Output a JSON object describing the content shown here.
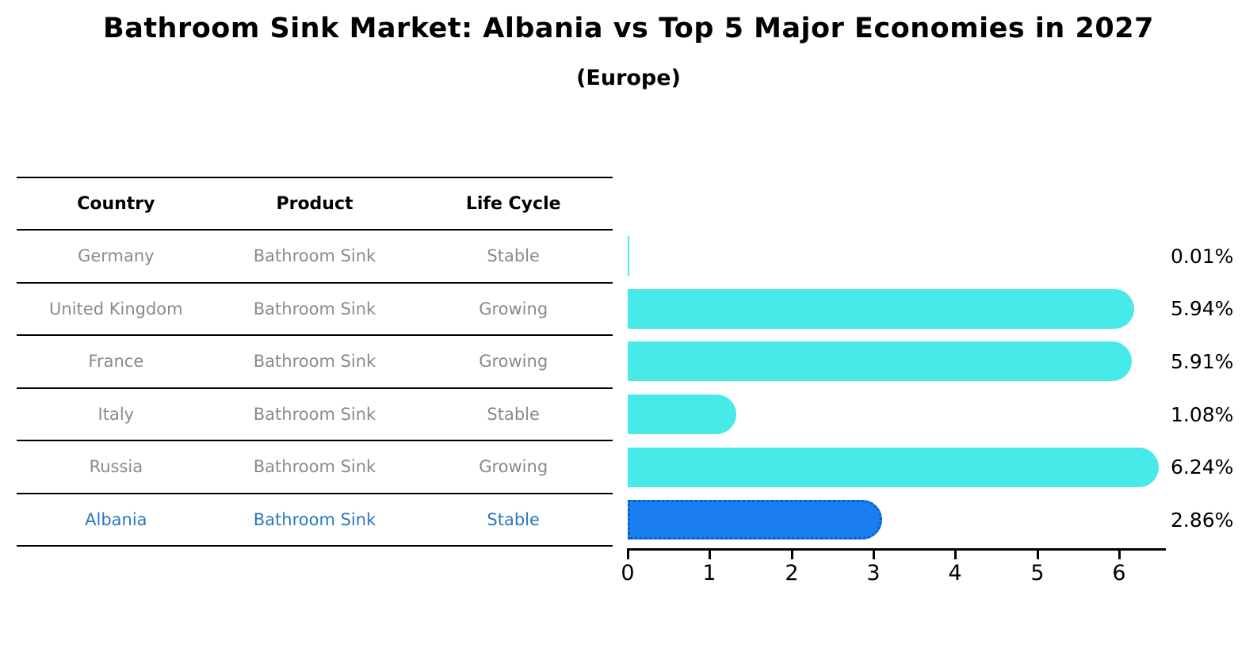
{
  "title": "Bathroom Sink Market: Albania vs Top 5 Major Economies in 2027",
  "subtitle": "(Europe)",
  "table": {
    "headers": [
      "Country",
      "Product",
      "Life Cycle"
    ],
    "rows": [
      {
        "country": "Germany",
        "product": "Bathroom Sink",
        "life_cycle": "Stable",
        "highlight": false
      },
      {
        "country": "United Kingdom",
        "product": "Bathroom Sink",
        "life_cycle": "Growing",
        "highlight": false
      },
      {
        "country": "France",
        "product": "Bathroom Sink",
        "life_cycle": "Growing",
        "highlight": false
      },
      {
        "country": "Italy",
        "product": "Bathroom Sink",
        "life_cycle": "Stable",
        "highlight": false
      },
      {
        "country": "Russia",
        "product": "Bathroom Sink",
        "life_cycle": "Growing",
        "highlight": false
      },
      {
        "country": "Albania",
        "product": "Bathroom Sink",
        "life_cycle": "Stable",
        "highlight": true
      }
    ]
  },
  "chart_data": {
    "type": "bar",
    "orientation": "horizontal",
    "title": "Bathroom Sink Market: Albania vs Top 5 Major Economies in 2027",
    "subtitle": "(Europe)",
    "categories": [
      "Germany",
      "United Kingdom",
      "France",
      "Italy",
      "Russia",
      "Albania"
    ],
    "values": [
      0.01,
      5.94,
      5.91,
      1.08,
      6.24,
      2.86
    ],
    "value_labels": [
      "0.01%",
      "5.94%",
      "5.91%",
      "1.08%",
      "6.24%",
      "2.86%"
    ],
    "xticks": [
      0,
      1,
      2,
      3,
      4,
      5,
      6
    ],
    "xlim": [
      0,
      6.56
    ],
    "xlabel": "",
    "ylabel": "",
    "grid": false,
    "legend": false,
    "bar_color": "#48e9e9",
    "highlight_color": "#1a7ef0",
    "highlight_border_color": "#0a5ad0",
    "highlight_index": 5,
    "highlight_text_color": "#2878be"
  }
}
